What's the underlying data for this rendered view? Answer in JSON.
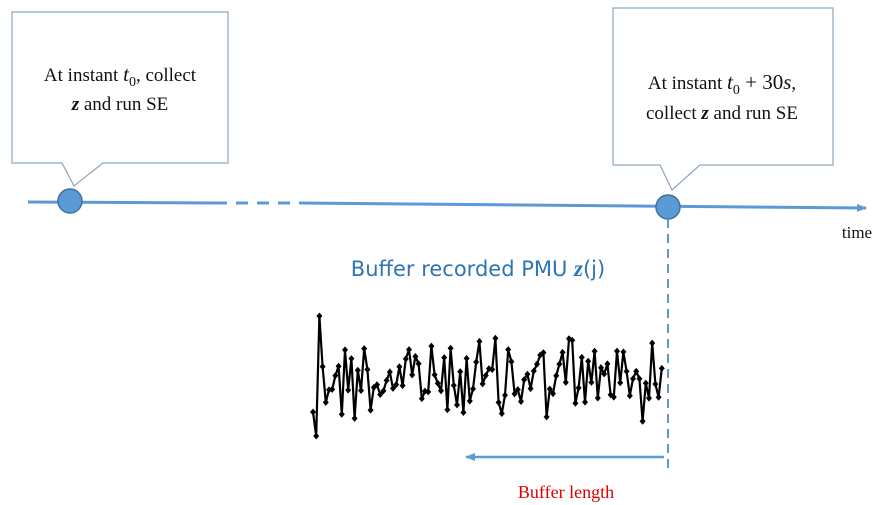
{
  "callouts": [
    {
      "line1": [
        "At instant ",
        "t",
        "0",
        ", collect"
      ],
      "line2": [
        "z",
        " and run SE"
      ]
    },
    {
      "line1": [
        "At instant ",
        "t",
        "0",
        " + 30",
        "s",
        ","
      ],
      "line2": [
        "collect ",
        "z",
        " and run SE"
      ]
    }
  ],
  "axis_label": "time",
  "buffer_title": [
    "Buffer recorded PMU ",
    "z",
    "(j)"
  ],
  "buffer_length": "Buffer length"
}
